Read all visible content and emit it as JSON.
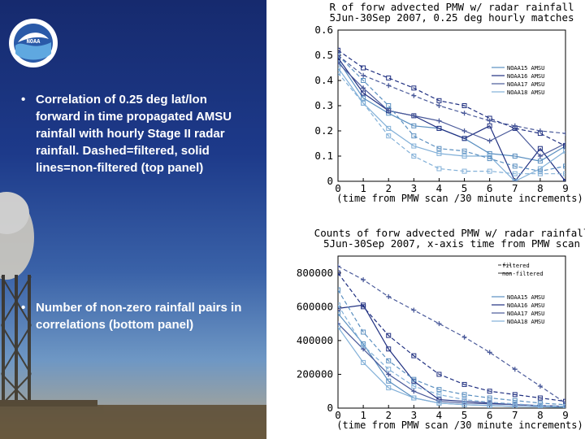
{
  "bullets": [
    {
      "marker": "•",
      "text": "Correlation of 0.25 deg lat/lon forward in time propagated AMSU rainfall with hourly Stage II radar rainfall. Dashed=filtered, solid lines=non-filtered (top panel)"
    },
    {
      "marker": "•",
      "text": "Number of non-zero rainfall pairs in correlations (bottom panel)"
    }
  ],
  "logo": {
    "text": "NOAA",
    "icon": "noaa-logo"
  },
  "colors": {
    "slide_bg_top": "#162a6e",
    "slide_bg_bottom": "#6e97c4",
    "text": "#ffffff"
  },
  "chart_data": [
    {
      "type": "line",
      "title": "R of forw advected PMW w/ radar rainfall",
      "subtitle": "5Jun-30Sep 2007, 0.25 deg hourly matches",
      "xlabel": "(time from PMW scan /30 minute increments)",
      "ylabel": "",
      "xlim": [
        0,
        9
      ],
      "ylim": [
        0,
        0.6
      ],
      "x_ticks": [
        "0",
        "1",
        "2",
        "3",
        "4",
        "5",
        "6",
        "7",
        "8",
        "9"
      ],
      "y_ticks": [
        "0",
        "0.1",
        "0.2",
        "0.3",
        "0.4",
        "0.5",
        "0.6"
      ],
      "x": [
        0,
        1,
        2,
        3,
        4,
        5,
        6,
        7,
        8,
        9
      ],
      "legend": {
        "placement": "top-right",
        "entries": [
          "NOAA15 AMSU",
          "NOAA16 AMSU",
          "NOAA17 AMSU",
          "NOAA18 AMSU"
        ]
      },
      "series": [
        {
          "name": "NOAA15 AMSU",
          "style": "solid",
          "color": "#5a8fc0",
          "values": [
            0.48,
            0.33,
            0.27,
            0.22,
            0.21,
            0.17,
            0.11,
            0.1,
            0.08,
            0.14
          ]
        },
        {
          "name": "NOAA16 AMSU",
          "style": "solid",
          "color": "#1f2f80",
          "values": [
            0.49,
            0.35,
            0.28,
            0.26,
            0.21,
            0.17,
            0.22,
            0.0,
            0.13,
            0.0
          ]
        },
        {
          "name": "NOAA17 AMSU",
          "style": "solid",
          "color": "#4a5a9a",
          "values": [
            0.47,
            0.37,
            0.28,
            0.26,
            0.24,
            0.2,
            0.16,
            0.21,
            0.1,
            0.15
          ]
        },
        {
          "name": "NOAA18 AMSU",
          "style": "solid",
          "color": "#82b0d8",
          "values": [
            0.45,
            0.31,
            0.21,
            0.14,
            0.11,
            0.1,
            0.1,
            0.0,
            0.05,
            0.12
          ]
        },
        {
          "name": "NOAA15 AMSU",
          "style": "dashed",
          "color": "#5a8fc0",
          "values": [
            0.5,
            0.4,
            0.3,
            0.18,
            0.13,
            0.12,
            0.09,
            0.06,
            0.04,
            0.06
          ]
        },
        {
          "name": "NOAA16 AMSU",
          "style": "dashed",
          "color": "#1f2f80",
          "values": [
            0.52,
            0.45,
            0.41,
            0.37,
            0.32,
            0.3,
            0.25,
            0.21,
            0.19,
            0.14
          ]
        },
        {
          "name": "NOAA17 AMSU",
          "style": "dashed",
          "color": "#4a5a9a",
          "values": [
            0.5,
            0.42,
            0.38,
            0.34,
            0.3,
            0.27,
            0.24,
            0.22,
            0.2,
            0.19
          ]
        },
        {
          "name": "NOAA18 AMSU",
          "style": "dashed",
          "color": "#82b0d8",
          "values": [
            0.43,
            0.31,
            0.18,
            0.1,
            0.05,
            0.04,
            0.04,
            0.03,
            0.03,
            0.03
          ]
        }
      ]
    },
    {
      "type": "line",
      "title": "Counts of forw advected PMW w/ radar rainfall",
      "subtitle": "5Jun-30Sep 2007, x-axis time from PMW scan",
      "xlabel": "(time from PMW scan /30 minute increments)",
      "ylabel": "",
      "xlim": [
        0,
        9
      ],
      "ylim": [
        0,
        900000
      ],
      "x_ticks": [
        "0",
        "1",
        "2",
        "3",
        "4",
        "5",
        "6",
        "7",
        "8",
        "9"
      ],
      "y_ticks": [
        "0",
        "200000",
        "400000",
        "600000",
        "800000"
      ],
      "x": [
        0,
        1,
        2,
        3,
        4,
        5,
        6,
        7,
        8,
        9
      ],
      "style_legend": {
        "placement": "top-right",
        "entries": [
          "filtered",
          "non-filtered"
        ]
      },
      "legend": {
        "placement": "right",
        "entries": [
          "NOAA15 AMSU",
          "NOAA16 AMSU",
          "NOAA17 AMSU",
          "NOAA18 AMSU"
        ]
      },
      "series": [
        {
          "name": "NOAA15 AMSU",
          "style": "solid",
          "color": "#5a8fc0",
          "values": [
            560000,
            380000,
            160000,
            60000,
            30000,
            20000,
            15000,
            10000,
            8000,
            5000
          ]
        },
        {
          "name": "NOAA16 AMSU",
          "style": "solid",
          "color": "#1f2f80",
          "values": [
            590000,
            610000,
            350000,
            160000,
            50000,
            40000,
            30000,
            20000,
            15000,
            10000
          ]
        },
        {
          "name": "NOAA17 AMSU",
          "style": "solid",
          "color": "#4a5a9a",
          "values": [
            500000,
            350000,
            200000,
            100000,
            40000,
            30000,
            25000,
            20000,
            15000,
            10000
          ]
        },
        {
          "name": "NOAA18 AMSU",
          "style": "solid",
          "color": "#82b0d8",
          "values": [
            480000,
            270000,
            120000,
            60000,
            30000,
            20000,
            15000,
            10000,
            8000,
            5000
          ]
        },
        {
          "name": "NOAA15 AMSU",
          "style": "dashed",
          "color": "#5a8fc0",
          "values": [
            700000,
            450000,
            280000,
            170000,
            110000,
            80000,
            60000,
            45000,
            30000,
            20000
          ]
        },
        {
          "name": "NOAA16 AMSU",
          "style": "dashed",
          "color": "#1f2f80",
          "values": [
            800000,
            600000,
            430000,
            310000,
            200000,
            140000,
            100000,
            80000,
            60000,
            40000
          ]
        },
        {
          "name": "NOAA17 AMSU",
          "style": "dashed",
          "color": "#4a5a9a",
          "values": [
            840000,
            760000,
            660000,
            580000,
            500000,
            420000,
            330000,
            230000,
            130000,
            30000
          ]
        },
        {
          "name": "NOAA18 AMSU",
          "style": "dashed",
          "color": "#82b0d8",
          "values": [
            610000,
            370000,
            230000,
            130000,
            80000,
            50000,
            35000,
            25000,
            15000,
            10000
          ]
        }
      ]
    }
  ]
}
